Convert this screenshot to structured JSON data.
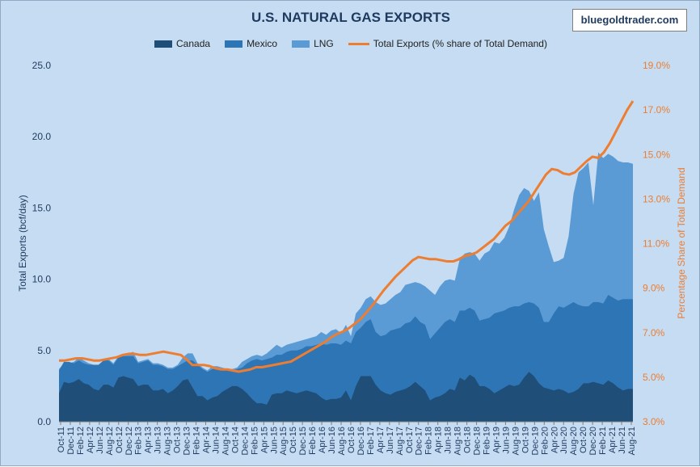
{
  "title": "U.S. NATURAL GAS EXPORTS",
  "watermark": "bluegoldtrader.com",
  "colors": {
    "background": "#c5dcf2",
    "canada": "#1f4e79",
    "mexico": "#2e75b6",
    "lng": "#5b9bd5",
    "total_line": "#ed7d31"
  },
  "chart_data": {
    "type": "area",
    "title": "U.S. NATURAL GAS EXPORTS",
    "ylabel": "Total Exports (bcf/day)",
    "y2label": "Percentage Share of Total Demand",
    "ylim": [
      0,
      25
    ],
    "y2lim": [
      3,
      19
    ],
    "yticks": [
      "0.0",
      "5.0",
      "10.0",
      "15.0",
      "20.0",
      "25.0"
    ],
    "y2ticks": [
      "3.0%",
      "5.0%",
      "7.0%",
      "9.0%",
      "11.0%",
      "13.0%",
      "15.0%",
      "17.0%",
      "19.0%"
    ],
    "x_ticks": [
      "Oct-11",
      "Dec-11",
      "Feb-12",
      "Apr-12",
      "Jun-12",
      "Aug-12",
      "Oct-12",
      "Dec-12",
      "Feb-13",
      "Apr-13",
      "Jun-13",
      "Aug-13",
      "Oct-13",
      "Dec-13",
      "Feb-14",
      "Apr-14",
      "Jun-14",
      "Aug-14",
      "Oct-14",
      "Dec-14",
      "Feb-15",
      "Apr-15",
      "Jun-15",
      "Aug-15",
      "Oct-15",
      "Dec-15",
      "Feb-16",
      "Apr-16",
      "Jun-16",
      "Aug-16",
      "Oct-16",
      "Dec-16",
      "Feb-17",
      "Apr-17",
      "Jun-17",
      "Aug-17",
      "Oct-17",
      "Dec-17",
      "Feb-18",
      "Apr-18",
      "Jun-18",
      "Aug-18",
      "Oct-18",
      "Dec-18",
      "Feb-19",
      "Apr-19",
      "Jun-19",
      "Aug-19",
      "Oct-19",
      "Dec-19",
      "Feb-20",
      "Apr-20",
      "Jun-20",
      "Aug-20",
      "Oct-20",
      "Dec-20",
      "Feb-21",
      "Apr-21",
      "Jun-21",
      "Aug-21"
    ],
    "grid": false,
    "legend_position": "top-center",
    "series": [
      {
        "name": "Canada",
        "axis": "left",
        "kind": "area",
        "values": [
          2.0,
          2.8,
          2.7,
          2.8,
          3.0,
          2.7,
          2.6,
          2.3,
          2.2,
          2.6,
          2.6,
          2.4,
          3.1,
          3.2,
          3.1,
          3.0,
          2.5,
          2.6,
          2.6,
          2.2,
          2.2,
          2.3,
          2.0,
          2.2,
          2.5,
          2.9,
          3.0,
          2.4,
          1.8,
          1.8,
          1.5,
          1.7,
          1.8,
          2.1,
          2.3,
          2.5,
          2.5,
          2.3,
          2.0,
          1.6,
          1.3,
          1.3,
          1.2,
          1.9,
          2.0,
          2.0,
          2.2,
          2.1,
          2.0,
          2.1,
          2.2,
          2.1,
          2.0,
          1.7,
          1.5,
          1.6,
          1.6,
          1.7,
          2.2,
          1.5,
          2.5,
          3.2,
          3.2,
          3.2,
          2.6,
          2.2,
          2.0,
          1.9,
          2.1,
          2.2,
          2.3,
          2.5,
          2.8,
          2.5,
          2.2,
          1.5,
          1.7,
          1.8,
          2.0,
          2.3,
          2.2,
          3.1,
          2.9,
          3.3,
          3.1,
          2.5,
          2.5,
          2.3,
          2.0,
          2.2,
          2.4,
          2.6,
          2.5,
          2.6,
          3.1,
          3.5,
          3.2,
          2.7,
          2.4,
          2.3,
          2.2,
          2.3,
          2.2,
          2.0,
          2.1,
          2.3,
          2.7,
          2.7,
          2.8,
          2.7,
          2.6,
          2.9,
          2.7,
          2.4,
          2.2,
          2.3,
          2.3
        ]
      },
      {
        "name": "Mexico",
        "axis": "left",
        "kind": "area",
        "values": [
          3.6,
          4.2,
          4.2,
          4.1,
          4.3,
          4.1,
          4.0,
          4.0,
          4.0,
          4.3,
          4.3,
          4.0,
          4.5,
          4.6,
          4.6,
          4.6,
          4.1,
          4.2,
          4.3,
          4.0,
          4.0,
          3.9,
          3.7,
          3.7,
          3.9,
          4.1,
          4.3,
          4.3,
          4.0,
          3.7,
          3.5,
          3.7,
          3.7,
          3.7,
          3.6,
          3.6,
          3.7,
          3.8,
          4.1,
          4.3,
          4.4,
          4.3,
          4.4,
          4.5,
          4.7,
          4.7,
          4.9,
          5.0,
          5.0,
          5.1,
          5.3,
          5.3,
          5.4,
          5.5,
          5.4,
          5.5,
          5.5,
          5.4,
          5.7,
          5.5,
          6.3,
          6.6,
          7.0,
          7.2,
          6.3,
          6.0,
          6.1,
          6.4,
          6.5,
          6.6,
          6.9,
          7.0,
          7.4,
          7.0,
          6.8,
          5.8,
          6.2,
          6.6,
          7.0,
          7.2,
          7.0,
          7.8,
          7.8,
          8.0,
          7.8,
          7.1,
          7.2,
          7.3,
          7.6,
          7.7,
          7.8,
          8.0,
          8.1,
          8.1,
          8.3,
          8.4,
          8.3,
          8.0,
          7.0,
          7.0,
          7.6,
          8.1,
          8.0,
          8.2,
          8.4,
          8.2,
          8.1,
          8.1,
          8.4,
          8.4,
          8.3,
          8.9,
          8.7,
          8.5,
          8.6,
          8.6,
          8.6
        ]
      },
      {
        "name": "LNG",
        "axis": "left",
        "kind": "area",
        "values": [
          3.7,
          4.1,
          4.1,
          4.2,
          4.5,
          4.3,
          4.1,
          4.0,
          4.0,
          4.3,
          4.4,
          4.1,
          4.6,
          4.7,
          4.8,
          4.9,
          4.2,
          4.3,
          4.4,
          4.1,
          4.1,
          4.0,
          3.8,
          3.8,
          4.0,
          4.5,
          4.8,
          4.8,
          4.1,
          3.8,
          3.6,
          3.9,
          3.9,
          3.8,
          3.7,
          3.7,
          3.8,
          4.2,
          4.4,
          4.6,
          4.7,
          4.6,
          4.8,
          5.1,
          5.4,
          5.2,
          5.4,
          5.5,
          5.6,
          5.7,
          5.8,
          5.9,
          6.0,
          6.3,
          6.1,
          6.4,
          6.5,
          6.2,
          6.8,
          6.0,
          7.6,
          8.0,
          8.6,
          8.8,
          8.4,
          8.2,
          8.3,
          8.6,
          8.9,
          9.1,
          9.6,
          9.7,
          9.8,
          9.7,
          9.5,
          9.2,
          8.9,
          9.5,
          9.9,
          10.0,
          9.9,
          11.4,
          11.8,
          11.9,
          11.8,
          11.3,
          11.8,
          12.0,
          12.6,
          12.5,
          12.9,
          13.7,
          14.9,
          15.9,
          16.4,
          16.2,
          15.5,
          16.1,
          13.5,
          12.3,
          11.2,
          11.3,
          11.5,
          13.0,
          16.0,
          17.5,
          17.8,
          18.2,
          15.2,
          18.9,
          18.5,
          18.8,
          18.6,
          18.3,
          18.2,
          18.2,
          18.1
        ]
      },
      {
        "name": "Total Exports (% share of Total Demand)",
        "axis": "right",
        "kind": "line",
        "values": [
          5.75,
          5.75,
          5.8,
          5.85,
          5.85,
          5.8,
          5.75,
          5.75,
          5.8,
          5.85,
          5.9,
          6.0,
          6.05,
          6.05,
          6.0,
          6.0,
          6.05,
          6.1,
          6.15,
          6.1,
          6.05,
          6.0,
          5.8,
          5.55,
          5.55,
          5.55,
          5.5,
          5.4,
          5.35,
          5.35,
          5.3,
          5.25,
          5.3,
          5.35,
          5.45,
          5.45,
          5.5,
          5.55,
          5.6,
          5.65,
          5.7,
          5.85,
          6.0,
          6.15,
          6.3,
          6.45,
          6.6,
          6.8,
          6.95,
          7.05,
          7.2,
          7.4,
          7.6,
          7.9,
          8.2,
          8.55,
          8.9,
          9.2,
          9.5,
          9.75,
          10.0,
          10.25,
          10.4,
          10.35,
          10.3,
          10.3,
          10.25,
          10.2,
          10.2,
          10.3,
          10.45,
          10.5,
          10.6,
          10.8,
          11.0,
          11.2,
          11.5,
          11.8,
          12.0,
          12.3,
          12.6,
          12.9,
          13.3,
          13.7,
          14.1,
          14.35,
          14.3,
          14.15,
          14.1,
          14.2,
          14.45,
          14.7,
          14.9,
          14.85,
          15.1,
          15.5,
          16.0,
          16.5,
          17.0,
          17.4
        ]
      }
    ]
  }
}
